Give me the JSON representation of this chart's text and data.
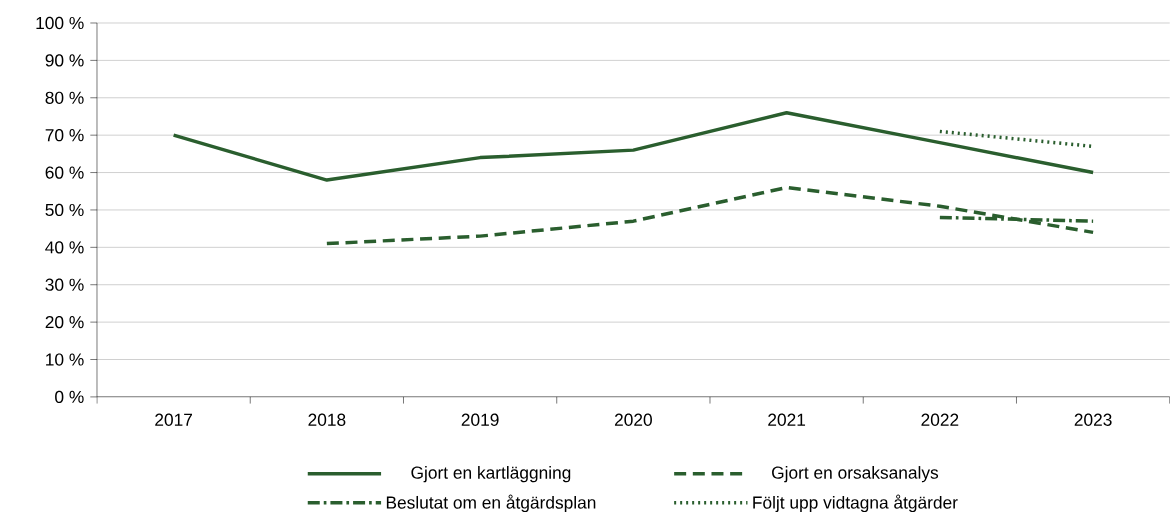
{
  "chart_data": {
    "type": "line",
    "categories": [
      "2017",
      "2018",
      "2019",
      "2020",
      "2021",
      "2022",
      "2023"
    ],
    "series": [
      {
        "name": "Gjort en kartläggning",
        "color": "#2a5e2e",
        "line_style": "solid",
        "values": [
          70,
          58,
          64,
          66,
          76,
          68,
          60
        ]
      },
      {
        "name": "Gjort en orsaksanalys",
        "color": "#2a5e2e",
        "line_style": "dashed",
        "values": [
          null,
          41,
          43,
          47,
          56,
          51,
          44
        ]
      },
      {
        "name": "Beslutat om en åtgärdsplan",
        "color": "#2a5e2e",
        "line_style": "dashdot",
        "values": [
          null,
          null,
          null,
          null,
          null,
          48,
          47
        ]
      },
      {
        "name": "Följt upp vidtagna åtgärder",
        "color": "#2a5e2e",
        "line_style": "dotted",
        "values": [
          null,
          null,
          null,
          null,
          null,
          71,
          67
        ]
      }
    ],
    "ylim": [
      0,
      100
    ],
    "yticks": [
      {
        "value": 0,
        "label": "0 %"
      },
      {
        "value": 10,
        "label": "10 %"
      },
      {
        "value": 20,
        "label": "20 %"
      },
      {
        "value": 30,
        "label": "30 %"
      },
      {
        "value": 40,
        "label": "40 %"
      },
      {
        "value": 50,
        "label": "50 %"
      },
      {
        "value": 60,
        "label": "60 %"
      },
      {
        "value": 70,
        "label": "70 %"
      },
      {
        "value": 80,
        "label": "80 %"
      },
      {
        "value": 90,
        "label": "90 %"
      },
      {
        "value": 100,
        "label": "100 %"
      }
    ],
    "grid": "y",
    "legend": "bottom",
    "marker": "none"
  }
}
